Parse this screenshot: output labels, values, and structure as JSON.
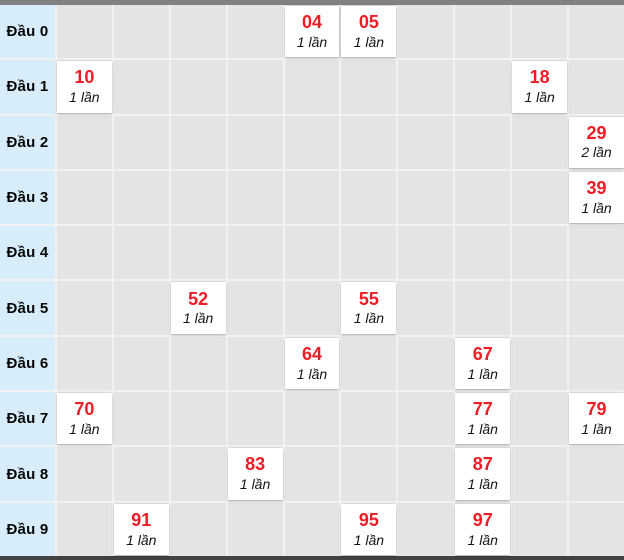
{
  "widget": {
    "description_labels": {
      "count_unit": "lần",
      "row_prefix": "Đầu"
    },
    "colors": {
      "top_bar": "#818181",
      "bottom_bar": "#424242",
      "row_label_bg": "#d7edf9",
      "empty_cell_bg": "#e3e4e5",
      "grid_line": "#f2f2f3",
      "hit_card_bg": "#ffffff",
      "number_red": "#ee1c25",
      "count_text": "#141414",
      "label_text": "#060606"
    }
  },
  "table": {
    "columns": 10,
    "rows": [
      {
        "label": "Đầu 0",
        "cells": [
          {
            "col": 4,
            "number": "04",
            "count": "1 lần"
          },
          {
            "col": 5,
            "number": "05",
            "count": "1 lần"
          }
        ]
      },
      {
        "label": "Đầu 1",
        "cells": [
          {
            "col": 0,
            "number": "10",
            "count": "1 lần"
          },
          {
            "col": 8,
            "number": "18",
            "count": "1 lần"
          }
        ]
      },
      {
        "label": "Đầu 2",
        "cells": [
          {
            "col": 9,
            "number": "29",
            "count": "2 lần"
          }
        ]
      },
      {
        "label": "Đầu 3",
        "cells": [
          {
            "col": 9,
            "number": "39",
            "count": "1 lần"
          }
        ]
      },
      {
        "label": "Đầu 4",
        "cells": []
      },
      {
        "label": "Đầu 5",
        "cells": [
          {
            "col": 2,
            "number": "52",
            "count": "1 lần"
          },
          {
            "col": 5,
            "number": "55",
            "count": "1 lần"
          }
        ]
      },
      {
        "label": "Đầu 6",
        "cells": [
          {
            "col": 4,
            "number": "64",
            "count": "1 lần"
          },
          {
            "col": 7,
            "number": "67",
            "count": "1 lần"
          }
        ]
      },
      {
        "label": "Đầu 7",
        "cells": [
          {
            "col": 0,
            "number": "70",
            "count": "1 lần"
          },
          {
            "col": 7,
            "number": "77",
            "count": "1 lần"
          },
          {
            "col": 9,
            "number": "79",
            "count": "1 lần"
          }
        ]
      },
      {
        "label": "Đầu 8",
        "cells": [
          {
            "col": 3,
            "number": "83",
            "count": "1 lần"
          },
          {
            "col": 7,
            "number": "87",
            "count": "1 lần"
          }
        ]
      },
      {
        "label": "Đầu 9",
        "cells": [
          {
            "col": 1,
            "number": "91",
            "count": "1 lần"
          },
          {
            "col": 5,
            "number": "95",
            "count": "1 lần"
          },
          {
            "col": 7,
            "number": "97",
            "count": "1 lần"
          }
        ]
      }
    ]
  },
  "chart_data": {
    "type": "table",
    "title": "",
    "row_labels": [
      "Đầu 0",
      "Đầu 1",
      "Đầu 2",
      "Đầu 3",
      "Đầu 4",
      "Đầu 5",
      "Đầu 6",
      "Đầu 7",
      "Đầu 8",
      "Đầu 9"
    ],
    "column_semantics": "unit digit 0-9 (unlabeled grid columns)",
    "entries": [
      {
        "row": "Đầu 0",
        "col": 4,
        "number": "04",
        "count": 1
      },
      {
        "row": "Đầu 0",
        "col": 5,
        "number": "05",
        "count": 1
      },
      {
        "row": "Đầu 1",
        "col": 0,
        "number": "10",
        "count": 1
      },
      {
        "row": "Đầu 1",
        "col": 8,
        "number": "18",
        "count": 1
      },
      {
        "row": "Đầu 2",
        "col": 9,
        "number": "29",
        "count": 2
      },
      {
        "row": "Đầu 3",
        "col": 9,
        "number": "39",
        "count": 1
      },
      {
        "row": "Đầu 5",
        "col": 2,
        "number": "52",
        "count": 1
      },
      {
        "row": "Đầu 5",
        "col": 5,
        "number": "55",
        "count": 1
      },
      {
        "row": "Đầu 6",
        "col": 4,
        "number": "64",
        "count": 1
      },
      {
        "row": "Đầu 6",
        "col": 7,
        "number": "67",
        "count": 1
      },
      {
        "row": "Đầu 7",
        "col": 0,
        "number": "70",
        "count": 1
      },
      {
        "row": "Đầu 7",
        "col": 7,
        "number": "77",
        "count": 1
      },
      {
        "row": "Đầu 7",
        "col": 9,
        "number": "79",
        "count": 1
      },
      {
        "row": "Đầu 8",
        "col": 3,
        "number": "83",
        "count": 1
      },
      {
        "row": "Đầu 8",
        "col": 7,
        "number": "87",
        "count": 1
      },
      {
        "row": "Đầu 9",
        "col": 1,
        "number": "91",
        "count": 1
      },
      {
        "row": "Đầu 9",
        "col": 5,
        "number": "95",
        "count": 1
      },
      {
        "row": "Đầu 9",
        "col": 7,
        "number": "97",
        "count": 1
      }
    ]
  }
}
